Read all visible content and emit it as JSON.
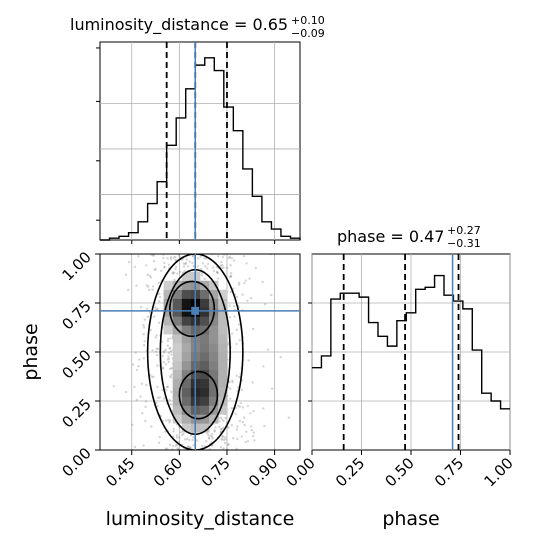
{
  "chart_data": {
    "type": "corner",
    "parameters": [
      "luminosity_distance",
      "phase"
    ],
    "truths": {
      "luminosity_distance": 0.65,
      "phase": 0.71
    },
    "titles": {
      "luminosity_distance": {
        "text": "luminosity_distance = 0.65",
        "upper": "+0.10",
        "lower": "−0.09"
      },
      "phase": {
        "text": "phase = 0.47",
        "upper": "+0.27",
        "lower": "−0.31"
      }
    },
    "luminosity_distance_hist": {
      "range": [
        0.35,
        0.98
      ],
      "quantiles": [
        0.56,
        0.65,
        0.75
      ],
      "counts": [
        0.0,
        0.01,
        0.02,
        0.04,
        0.1,
        0.2,
        0.32,
        0.52,
        0.67,
        0.83,
        0.96,
        1.0,
        0.93,
        0.73,
        0.6,
        0.39,
        0.24,
        0.1,
        0.06,
        0.02,
        0.01
      ],
      "xticks": [
        "0.45",
        "0.60",
        "0.75",
        "0.90"
      ],
      "xtick_values": [
        0.45,
        0.6,
        0.75,
        0.9
      ]
    },
    "phase_hist": {
      "range": [
        0.0,
        1.0
      ],
      "quantiles": [
        0.16,
        0.47,
        0.74
      ],
      "counts": [
        0.42,
        0.48,
        0.77,
        0.8,
        0.8,
        0.78,
        0.65,
        0.58,
        0.53,
        0.66,
        0.7,
        0.82,
        0.83,
        0.89,
        0.79,
        0.76,
        0.72,
        0.51,
        0.29,
        0.25,
        0.21
      ],
      "xticks": [
        "0.00",
        "0.25",
        "0.50",
        "0.75",
        "1.00"
      ],
      "xtick_values": [
        0.0,
        0.25,
        0.5,
        0.75,
        1.0
      ]
    },
    "joint": {
      "yticks": [
        "0.00",
        "0.25",
        "0.50",
        "0.75",
        "1.00"
      ],
      "ytick_values": [
        0.0,
        0.25,
        0.5,
        0.75,
        1.0
      ],
      "density_blobs": [
        {
          "x": 0.64,
          "y": 0.73,
          "sx": 0.05,
          "sy": 0.08,
          "w": 1.0
        },
        {
          "x": 0.66,
          "y": 0.28,
          "sx": 0.045,
          "sy": 0.1,
          "w": 0.8
        },
        {
          "x": 0.68,
          "y": 0.5,
          "sx": 0.05,
          "sy": 0.12,
          "w": 0.45
        }
      ],
      "contour_levels": [
        {
          "cx": 0.65,
          "cy": 0.5,
          "rx": 0.15,
          "ry": 0.5
        },
        {
          "cx": 0.65,
          "cy": 0.5,
          "rx": 0.11,
          "ry": 0.42
        },
        {
          "cx": 0.64,
          "cy": 0.72,
          "rx": 0.07,
          "ry": 0.14
        },
        {
          "cx": 0.66,
          "cy": 0.28,
          "rx": 0.06,
          "ry": 0.12
        }
      ]
    },
    "xlabel_bottom_left": "luminosity_distance",
    "xlabel_bottom_right": "phase",
    "ylabel_left": "phase"
  },
  "colors": {
    "truth": "#4a7fb5",
    "hist": "#000000",
    "density_dark": "#000000",
    "grid": "#b0b0b0"
  }
}
